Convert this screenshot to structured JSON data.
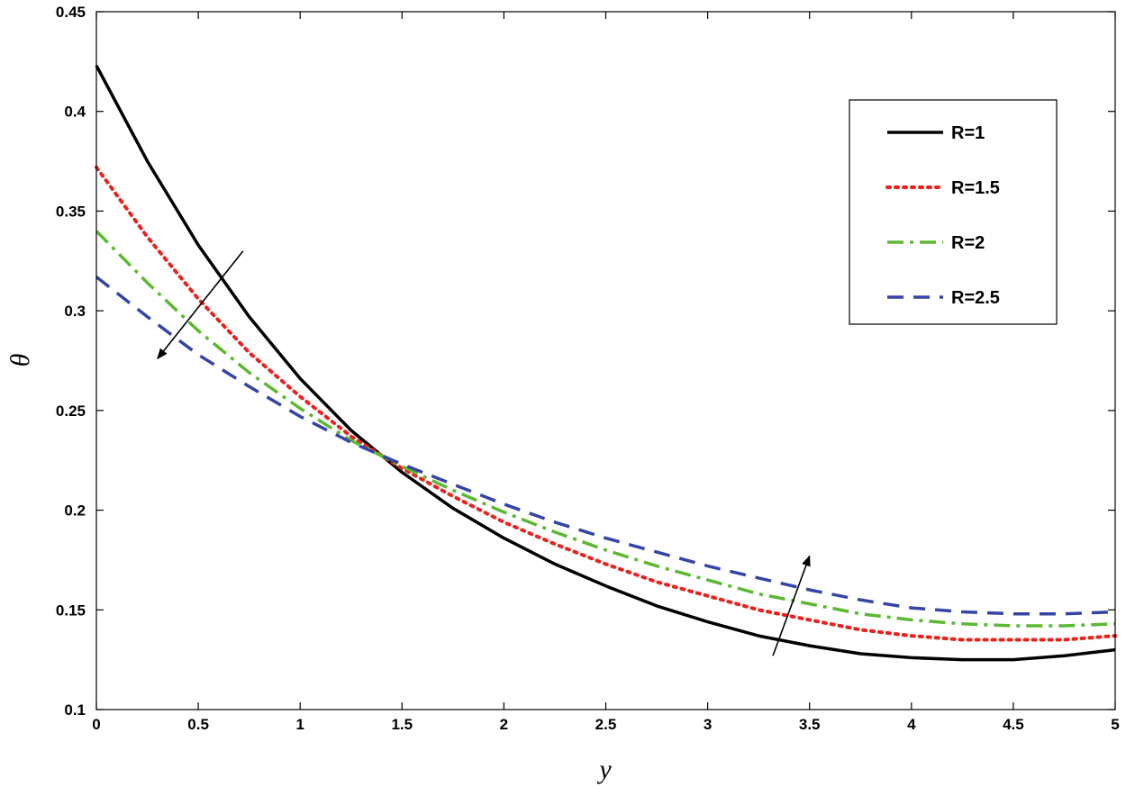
{
  "chart_data": {
    "type": "line",
    "xlabel": "y",
    "ylabel": "θ",
    "xlim": [
      0,
      5
    ],
    "ylim": [
      0.1,
      0.45
    ],
    "xticks": [
      "0",
      "0.5",
      "1",
      "1.5",
      "2",
      "2.5",
      "3",
      "3.5",
      "4",
      "4.5",
      "5"
    ],
    "yticks": [
      "0.1",
      "0.15",
      "0.2",
      "0.25",
      "0.3",
      "0.35",
      "0.4",
      "0.45"
    ],
    "grid": false,
    "legend_position": "top-right",
    "x": [
      0,
      0.25,
      0.5,
      0.75,
      1,
      1.25,
      1.5,
      1.75,
      2,
      2.25,
      2.5,
      2.75,
      3,
      3.25,
      3.5,
      3.75,
      4,
      4.25,
      4.5,
      4.75,
      5
    ],
    "series": [
      {
        "name": "R=1",
        "color": "#000000",
        "dash": "solid",
        "values": [
          0.423,
          0.375,
          0.333,
          0.297,
          0.266,
          0.24,
          0.219,
          0.201,
          0.186,
          0.173,
          0.162,
          0.152,
          0.144,
          0.137,
          0.132,
          0.128,
          0.126,
          0.125,
          0.125,
          0.127,
          0.13
        ]
      },
      {
        "name": "R=1.5",
        "color": "#e8231e",
        "dash": "dotted",
        "values": [
          0.372,
          0.337,
          0.306,
          0.279,
          0.257,
          0.237,
          0.221,
          0.207,
          0.194,
          0.183,
          0.173,
          0.164,
          0.157,
          0.15,
          0.145,
          0.14,
          0.137,
          0.135,
          0.135,
          0.135,
          0.137
        ]
      },
      {
        "name": "R=2",
        "color": "#5db832",
        "dash": "dashdot",
        "values": [
          0.34,
          0.314,
          0.29,
          0.269,
          0.251,
          0.235,
          0.222,
          0.21,
          0.199,
          0.189,
          0.18,
          0.172,
          0.165,
          0.158,
          0.153,
          0.148,
          0.145,
          0.143,
          0.142,
          0.142,
          0.143
        ]
      },
      {
        "name": "R=2.5",
        "color": "#3545a5",
        "dash": "dashed",
        "values": [
          0.317,
          0.297,
          0.278,
          0.262,
          0.247,
          0.234,
          0.223,
          0.213,
          0.203,
          0.194,
          0.186,
          0.179,
          0.172,
          0.166,
          0.16,
          0.155,
          0.151,
          0.149,
          0.148,
          0.148,
          0.149
        ]
      }
    ],
    "annotations": [
      {
        "kind": "arrow",
        "from": [
          0.72,
          0.33
        ],
        "to": [
          0.3,
          0.276
        ]
      },
      {
        "kind": "arrow",
        "from": [
          3.32,
          0.127
        ],
        "to": [
          3.5,
          0.177
        ]
      }
    ]
  }
}
